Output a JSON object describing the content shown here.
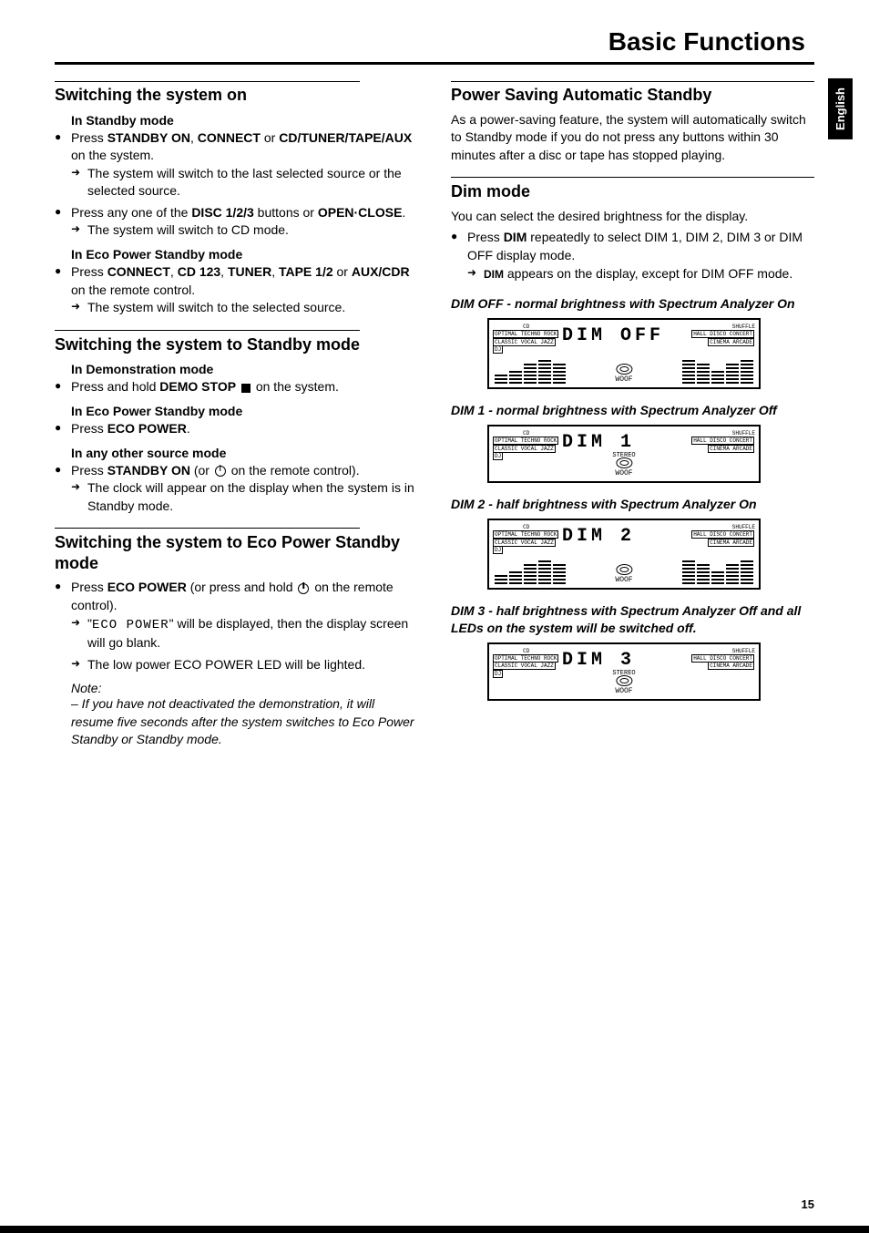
{
  "page": {
    "title": "Basic Functions",
    "language_tab": "English",
    "number": "15"
  },
  "left": {
    "s1": {
      "heading": "Switching the system on",
      "sub1": "In Standby mode",
      "b1_pre": "Press ",
      "b1_bold1": "STANDBY ON",
      "b1_mid1": ", ",
      "b1_bold2": "CONNECT",
      "b1_mid2": " or ",
      "b1_bold3": "CD/TUNER/TAPE/AUX",
      "b1_post": " on the system.",
      "r1": "The system will switch to the last selected source or the selected source.",
      "b2_pre": "Press any one of the ",
      "b2_bold1": "DISC 1/2/3",
      "b2_mid1": " buttons or ",
      "b2_bold2": "OPEN·CLOSE",
      "b2_post": ".",
      "r2": "The system will switch to CD mode.",
      "sub2": "In Eco Power Standby mode",
      "b3_pre": "Press ",
      "b3_bold1": "CONNECT",
      "b3_mid1": ", ",
      "b3_bold2": "CD 123",
      "b3_mid2": ", ",
      "b3_bold3": "TUNER",
      "b3_mid3": ", ",
      "b3_bold4": "TAPE 1/2",
      "b3_mid4": " or ",
      "b3_bold5": "AUX/CDR",
      "b3_post": " on the remote control.",
      "r3": "The system will switch to the selected source."
    },
    "s2": {
      "heading": "Switching the system to Standby mode",
      "sub1": "In Demonstration mode",
      "b1_pre": "Press and hold ",
      "b1_bold1": "DEMO STOP",
      "b1_post": " on the system.",
      "sub2": "In Eco Power Standby mode",
      "b2_pre": "Press ",
      "b2_bold1": "ECO POWER",
      "b2_post": ".",
      "sub3": "In any other source mode",
      "b3_pre": "Press ",
      "b3_bold1": "STANDBY ON",
      "b3_mid": " (or ",
      "b3_post": " on the remote control).",
      "r3": "The clock will appear on the display when the system is in Standby mode."
    },
    "s3": {
      "heading": "Switching the system to Eco Power Standby mode",
      "b1_pre": "Press ",
      "b1_bold1": "ECO POWER",
      "b1_mid": " (or press and hold ",
      "b1_post": " on the remote control).",
      "r1_pre": "\"",
      "r1_seg": "ECO POWER",
      "r1_post": "\" will be displayed, then the display screen will go blank.",
      "r2": "The low power ECO POWER LED will be lighted.",
      "note_head": "Note:",
      "note_body": "– If you have not deactivated the demonstration, it will resume five seconds after the system switches to Eco Power Standby or Standby mode."
    }
  },
  "right": {
    "s1": {
      "heading": "Power Saving Automatic Standby",
      "p1": "As a power-saving feature, the system will automatically switch to Standby mode if you do not press any buttons within 30 minutes after a disc or tape has stopped playing."
    },
    "s2": {
      "heading": "Dim mode",
      "p1": "You can select the desired brightness for the display.",
      "b1_pre": "Press ",
      "b1_bold1": "DIM",
      "b1_post": " repeatedly to select DIM 1, DIM 2, DIM 3 or DIM OFF display mode.",
      "r1_sc": "DIM",
      "r1_post": " appears on the display, except for DIM OFF mode."
    },
    "dim_off": {
      "caption": "DIM OFF - normal brightness with Spectrum Analyzer On",
      "seg": "DIM  OFF",
      "spectrum": true,
      "bars": [
        10,
        16,
        22,
        28,
        22,
        0,
        0,
        28,
        22,
        16,
        22,
        28
      ]
    },
    "dim1": {
      "caption": "DIM 1 - normal brightness with Spectrum Analyzer Off",
      "seg": "DIM   1",
      "spectrum": false
    },
    "dim2": {
      "caption": "DIM 2 - half brightness with Spectrum Analyzer On",
      "seg": "DIM   2",
      "spectrum": true,
      "bars": [
        10,
        16,
        22,
        28,
        22,
        0,
        0,
        28,
        22,
        16,
        22,
        28
      ]
    },
    "dim3": {
      "caption": "DIM 3 - half brightness with Spectrum Analyzer Off and all LEDs on the system will be switched off.",
      "seg": "DIM   3",
      "spectrum": false
    },
    "badges": {
      "left_top": "CD",
      "left_r1": "OPTIMAL TECHNO ROCK",
      "left_r2": "CLASSIC VOCAL JAZZ",
      "left_r3": "DJ",
      "right_r0": "SHUFFLE",
      "right_r1": "HALL DISCO CONCERT",
      "right_r2": "CINEMA ARCADE",
      "woof": "WOOF",
      "stereo": "STEREO"
    }
  }
}
